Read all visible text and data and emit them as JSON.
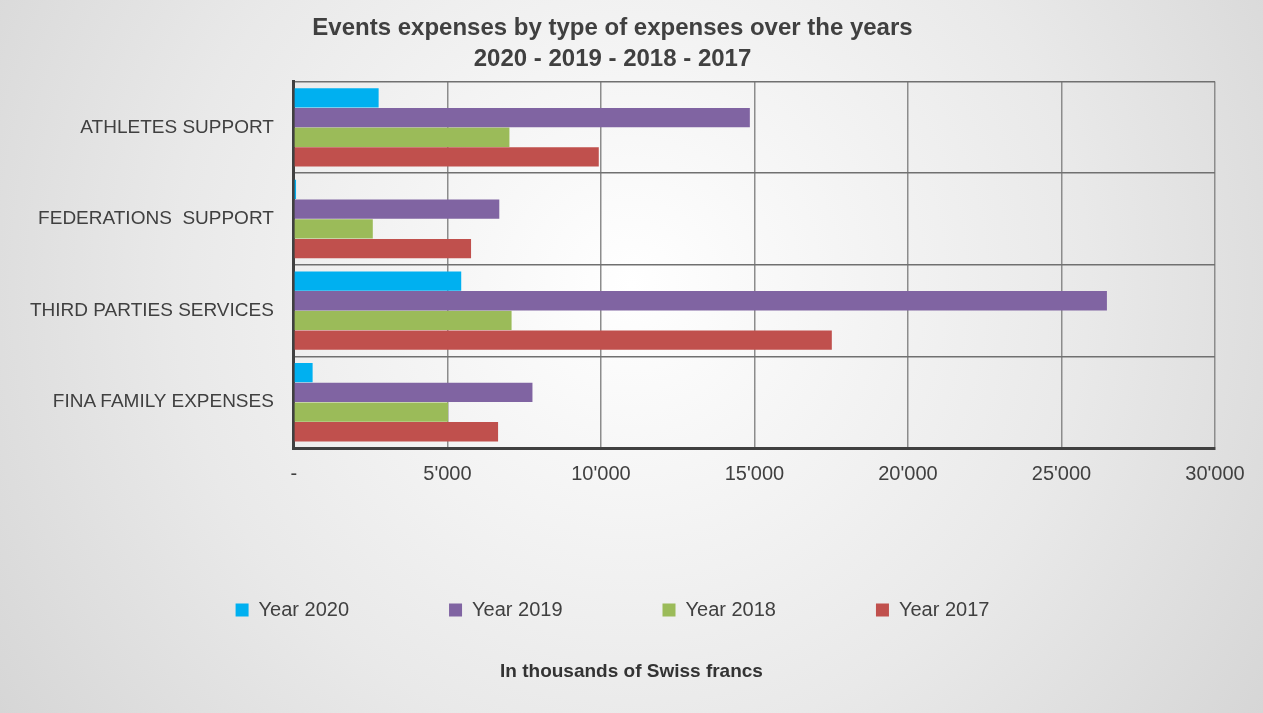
{
  "chart_data": {
    "type": "bar",
    "orientation": "horizontal",
    "title": "Events expenses by type of expenses over the years",
    "subtitle": "2020 - 2019 - 2018 - 2017",
    "annotations": [
      "In thousands of Swiss francs"
    ],
    "categories": [
      "ATHLETES SUPPORT",
      "FEDERATIONS  SUPPORT",
      "THIRD PARTIES SERVICES",
      "FINA FAMILY EXPENSES"
    ],
    "series": [
      {
        "name": "Year 2020",
        "color": "#00b0f0",
        "values": [
          2760,
          70,
          5450,
          610
        ]
      },
      {
        "name": "Year 2019",
        "color": "#8064a2",
        "values": [
          14850,
          6690,
          26480,
          7770
        ]
      },
      {
        "name": "Year 2018",
        "color": "#9bbb59",
        "values": [
          7020,
          2570,
          7090,
          5020
        ]
      },
      {
        "name": "Year 2017",
        "color": "#c0504d",
        "values": [
          9930,
          5770,
          17520,
          6650
        ]
      }
    ],
    "xlim": [
      0,
      30000
    ],
    "xticks": [
      {
        "value": 0,
        "label": "-"
      },
      {
        "value": 5000,
        "label": "5'000"
      },
      {
        "value": 10000,
        "label": "10'000"
      },
      {
        "value": 15000,
        "label": "15'000"
      },
      {
        "value": 20000,
        "label": "20'000"
      },
      {
        "value": 25000,
        "label": "25'000"
      },
      {
        "value": 30000,
        "label": "30'000"
      }
    ],
    "grid": true,
    "legend": "bottom"
  }
}
